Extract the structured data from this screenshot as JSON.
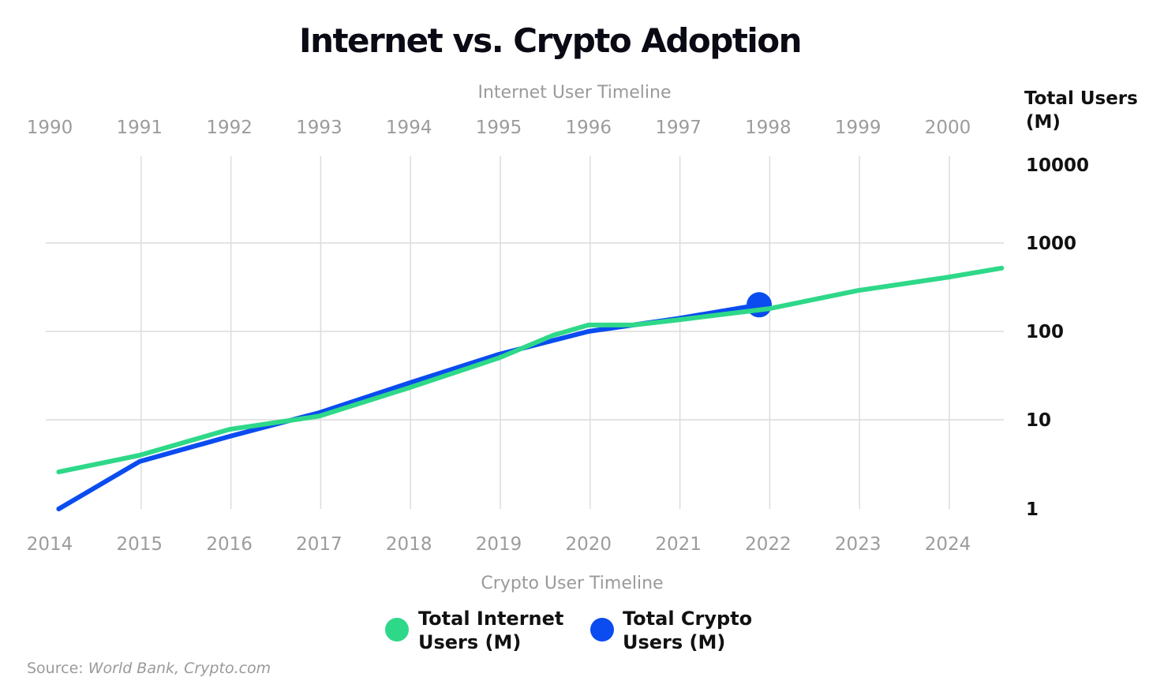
{
  "chart_data": {
    "type": "line",
    "title": "Internet vs. Crypto Adoption",
    "top_axis": {
      "title": "Internet User Timeline",
      "ticks": [
        "1990",
        "1991",
        "1992",
        "1993",
        "1994",
        "1995",
        "1996",
        "1997",
        "1998",
        "1999",
        "2000"
      ]
    },
    "bottom_axis": {
      "title": "Crypto User Timeline",
      "ticks": [
        "2014",
        "2015",
        "2016",
        "2017",
        "2018",
        "2019",
        "2020",
        "2021",
        "2022",
        "2023",
        "2024"
      ]
    },
    "y_axis": {
      "title_line1": "Total Users",
      "title_line2": "(M)",
      "scale": "log",
      "ticks": [
        {
          "value": 10000,
          "label": "10000"
        },
        {
          "value": 1000,
          "label": "1000"
        },
        {
          "value": 100,
          "label": "100"
        },
        {
          "value": 10,
          "label": "10"
        },
        {
          "value": 1,
          "label": "1"
        }
      ]
    },
    "grid": true,
    "series": [
      {
        "name_line1": "Total Internet",
        "name_line2": "Users (M)",
        "color": "#2ed889",
        "axis": "top",
        "points": [
          {
            "x": 1990.1,
            "y": 2.6
          },
          {
            "x": 1991.0,
            "y": 4.0
          },
          {
            "x": 1992.0,
            "y": 7.8
          },
          {
            "x": 1993.0,
            "y": 11
          },
          {
            "x": 1994.0,
            "y": 23
          },
          {
            "x": 1995.0,
            "y": 50
          },
          {
            "x": 1995.6,
            "y": 90
          },
          {
            "x": 1996.0,
            "y": 118
          },
          {
            "x": 1996.5,
            "y": 118
          },
          {
            "x": 1997.0,
            "y": 135
          },
          {
            "x": 1998.0,
            "y": 180
          },
          {
            "x": 1999.0,
            "y": 290
          },
          {
            "x": 2000.0,
            "y": 410
          },
          {
            "x": 2000.6,
            "y": 520
          }
        ]
      },
      {
        "name_line1": "Total Crypto",
        "name_line2": "Users (M)",
        "color": "#0a4cf0",
        "axis": "bottom",
        "points": [
          {
            "x": 2014.1,
            "y": 1.0
          },
          {
            "x": 2015.0,
            "y": 3.4
          },
          {
            "x": 2016.0,
            "y": 6.5
          },
          {
            "x": 2017.0,
            "y": 12
          },
          {
            "x": 2018.0,
            "y": 26
          },
          {
            "x": 2019.0,
            "y": 55
          },
          {
            "x": 2020.0,
            "y": 100
          },
          {
            "x": 2021.0,
            "y": 140
          },
          {
            "x": 2021.9,
            "y": 200
          }
        ],
        "marker_at_last": true
      }
    ],
    "legend_position": "bottom",
    "source": {
      "prefix": "Source: ",
      "text": "World Bank, Crypto.com"
    }
  }
}
